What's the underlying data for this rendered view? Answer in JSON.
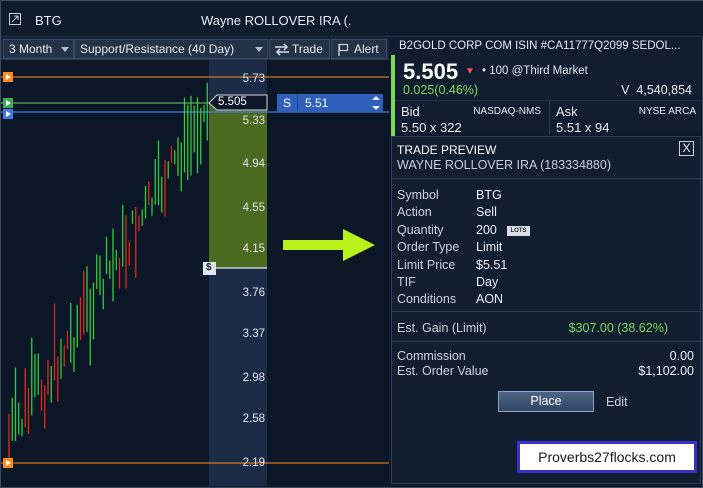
{
  "titlebar": {
    "symbol": "BTG",
    "account_title": "Wayne ROLLOVER IRA (."
  },
  "toolbar": {
    "range": "3 Month",
    "study": "Support/Resistance (40 Day)",
    "trade_label": "Trade",
    "alert_label": "Alert"
  },
  "chart": {
    "price_ticks": [
      "5.73",
      "5.33",
      "4.94",
      "4.55",
      "4.15",
      "3.76",
      "3.37",
      "2.98",
      "2.58",
      "2.19"
    ],
    "last_price_label": "5.505",
    "limit_side": "S",
    "limit_price": "5.51",
    "dollar_marker": "$",
    "colors": {
      "up": "#2ecc40",
      "down": "#e0291c",
      "support": "#ff8c1a",
      "highlight": "#4a6a1f",
      "limit_line": "#4a7bd8"
    }
  },
  "quote": {
    "header": "B2GOLD CORP COM ISIN #CA11777Q2099 SEDOL...",
    "last": "5.505",
    "last_size": "100 @Third Market",
    "change": "0.025(0.46%)",
    "volume_label": "V",
    "volume": "4,540,854",
    "bid_label": "Bid",
    "bid_exchange": "NASDAQ-NMS",
    "bid_value": "5.50 x 322",
    "ask_label": "Ask",
    "ask_exchange": "NYSE ARCA",
    "ask_value": "5.51 x 94"
  },
  "preview": {
    "title": "TRADE PREVIEW",
    "account": "WAYNE ROLLOVER IRA (183334880)",
    "rows": [
      {
        "key": "Symbol",
        "value": "BTG"
      },
      {
        "key": "Action",
        "value": "Sell"
      },
      {
        "key": "Quantity",
        "value": "200"
      },
      {
        "key": "Order Type",
        "value": "Limit"
      },
      {
        "key": "Limit Price",
        "value": "$5.51"
      },
      {
        "key": "TIF",
        "value": "Day"
      },
      {
        "key": "Conditions",
        "value": "AON"
      }
    ],
    "lots_badge": "LOTS",
    "gain_label": "Est. Gain (Limit)",
    "gain_value": "$307.00 (38.62%)",
    "commission_label": "Commission",
    "commission_value": "0.00",
    "order_value_label": "Est. Order Value",
    "order_value": "$1,102.00",
    "place_label": "Place",
    "edit_label": "Edit",
    "close_glyph": "X"
  },
  "watermark": "Proverbs27flocks.com"
}
